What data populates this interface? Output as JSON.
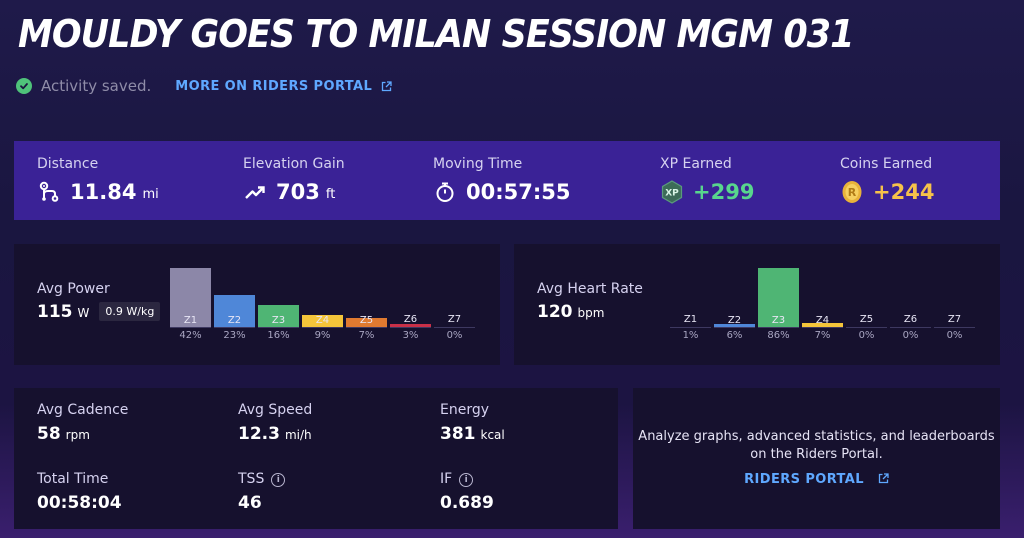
{
  "title": "MOULDY GOES TO MILAN SESSION MGM 031",
  "status": {
    "saved_text": "Activity saved.",
    "portal_link": "MORE ON RIDERS PORTAL"
  },
  "summary": {
    "distance": {
      "label": "Distance",
      "value": "11.84",
      "unit": "mi",
      "icon": "route-icon"
    },
    "elevation": {
      "label": "Elevation Gain",
      "value": "703",
      "unit": "ft",
      "icon": "trend-up-icon"
    },
    "moving_time": {
      "label": "Moving Time",
      "value": "00:57:55",
      "icon": "stopwatch-icon"
    },
    "xp": {
      "label": "XP Earned",
      "value": "+299",
      "icon": "xp-badge-icon",
      "badge_text": "XP"
    },
    "coins": {
      "label": "Coins Earned",
      "value": "+244",
      "icon": "coin-icon",
      "coin_text": "R"
    }
  },
  "power": {
    "label": "Avg Power",
    "value": "115",
    "unit": "W",
    "wkg": "0.9 W/kg",
    "zones": [
      {
        "name": "Z1",
        "pct": "42%",
        "fraction": 0.42,
        "color": "#8c87a8"
      },
      {
        "name": "Z2",
        "pct": "23%",
        "fraction": 0.23,
        "color": "#4f87d8"
      },
      {
        "name": "Z3",
        "pct": "16%",
        "fraction": 0.16,
        "color": "#4fb574"
      },
      {
        "name": "Z4",
        "pct": "9%",
        "fraction": 0.09,
        "color": "#f4c53a"
      },
      {
        "name": "Z5",
        "pct": "7%",
        "fraction": 0.07,
        "color": "#e07a30"
      },
      {
        "name": "Z6",
        "pct": "3%",
        "fraction": 0.03,
        "color": "#c93048"
      },
      {
        "name": "Z7",
        "pct": "0%",
        "fraction": 0.0,
        "color": "#7a2a8a"
      }
    ]
  },
  "heart_rate": {
    "label": "Avg Heart Rate",
    "value": "120",
    "unit": "bpm",
    "zones": [
      {
        "name": "Z1",
        "pct": "1%",
        "fraction": 0.01,
        "color": "#8c87a8"
      },
      {
        "name": "Z2",
        "pct": "6%",
        "fraction": 0.06,
        "color": "#4f87d8"
      },
      {
        "name": "Z3",
        "pct": "86%",
        "fraction": 0.86,
        "color": "#4fb574"
      },
      {
        "name": "Z4",
        "pct": "7%",
        "fraction": 0.07,
        "color": "#f4c53a"
      },
      {
        "name": "Z5",
        "pct": "0%",
        "fraction": 0.0,
        "color": "#e07a30"
      },
      {
        "name": "Z6",
        "pct": "0%",
        "fraction": 0.0,
        "color": "#c93048"
      },
      {
        "name": "Z7",
        "pct": "0%",
        "fraction": 0.0,
        "color": "#7a2a8a"
      }
    ]
  },
  "stats": {
    "cadence": {
      "label": "Avg Cadence",
      "value": "58",
      "unit": "rpm"
    },
    "speed": {
      "label": "Avg Speed",
      "value": "12.3",
      "unit": "mi/h"
    },
    "energy": {
      "label": "Energy",
      "value": "381",
      "unit": "kcal"
    },
    "total_time": {
      "label": "Total Time",
      "value": "00:58:04"
    },
    "tss": {
      "label": "TSS",
      "value": "46"
    },
    "if": {
      "label": "IF",
      "value": "0.689"
    },
    "info_glyph": "i"
  },
  "cta": {
    "text": "Analyze graphs, advanced statistics, and leaderboards on the Riders Portal.",
    "link": "RIDERS PORTAL"
  }
}
